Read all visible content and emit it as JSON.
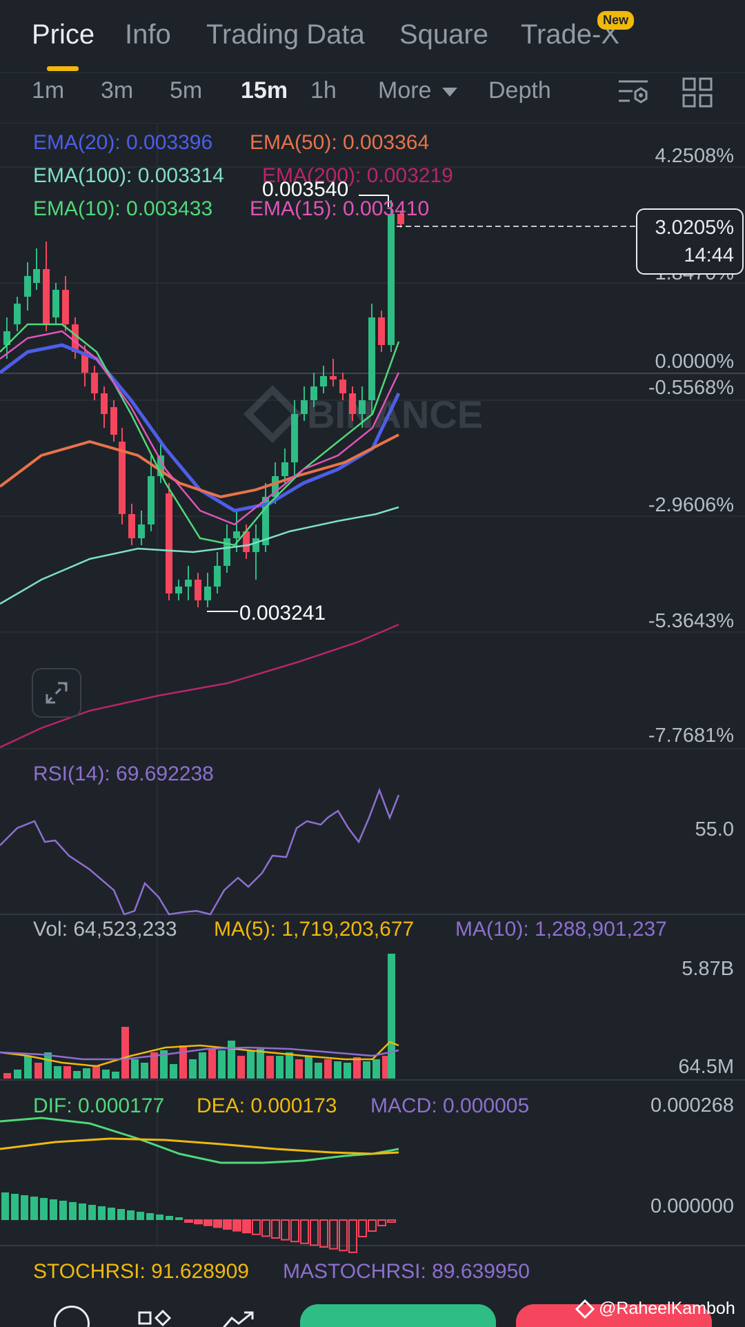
{
  "tabs": {
    "price": "Price",
    "info": "Info",
    "trading_data": "Trading Data",
    "square": "Square",
    "tradex": "Trade-X",
    "new_badge": "New"
  },
  "intervals": {
    "m1": "1m",
    "m3": "3m",
    "m5": "5m",
    "m15": "15m",
    "h1": "1h",
    "more": "More",
    "depth": "Depth"
  },
  "ema": {
    "ema20": "EMA(20): 0.003396",
    "ema50": "EMA(50): 0.003364",
    "ema100": "EMA(100): 0.003314",
    "ema200": "EMA(200): 0.003219",
    "ema10": "EMA(10): 0.003433",
    "ema15": "EMA(15): 0.003410"
  },
  "price_chart": {
    "high_label": "0.003540",
    "low_label": "0.003241",
    "current_pct": "3.0205%",
    "countdown": "14:44",
    "watermark": "BINANCE",
    "axis": [
      "4.2508%",
      "1.8470%",
      "0.0000%",
      "-0.5568%",
      "-2.9606%",
      "-5.3643%",
      "-7.7681%"
    ]
  },
  "rsi": {
    "label": "RSI(14): 69.692238",
    "axis": "55.0"
  },
  "volume": {
    "vol": "Vol: 64,523,233",
    "ma5": "MA(5): 1,719,203,677",
    "ma10": "MA(10): 1,288,901,237",
    "axis_top": "5.87B",
    "axis_bottom": "64.5M"
  },
  "macd": {
    "dif": "DIF: 0.000177",
    "dea": "DEA: 0.000173",
    "macd": "MACD: 0.000005",
    "axis_top": "0.000268",
    "axis_mid": "0.000000"
  },
  "stoch": {
    "stochrsi": "STOCHRSI: 91.628909",
    "mastochrsi": "MASTOCHRSI: 89.639950"
  },
  "watermark_user": "@RaheelKamboh",
  "colors": {
    "bg": "#1e2329",
    "up": "#2ebd85",
    "down": "#f6465d",
    "ema20": "#4d5ee8",
    "ema50": "#e8734a",
    "ema100": "#7ee0c8",
    "ema200": "#b8256a",
    "ema10": "#4fd97a",
    "ema15": "#e055b8",
    "rsi": "#8e6fd0",
    "ma5": "#f0b90b",
    "ma10": "#8e6fd0",
    "accent": "#f0b90b"
  }
}
